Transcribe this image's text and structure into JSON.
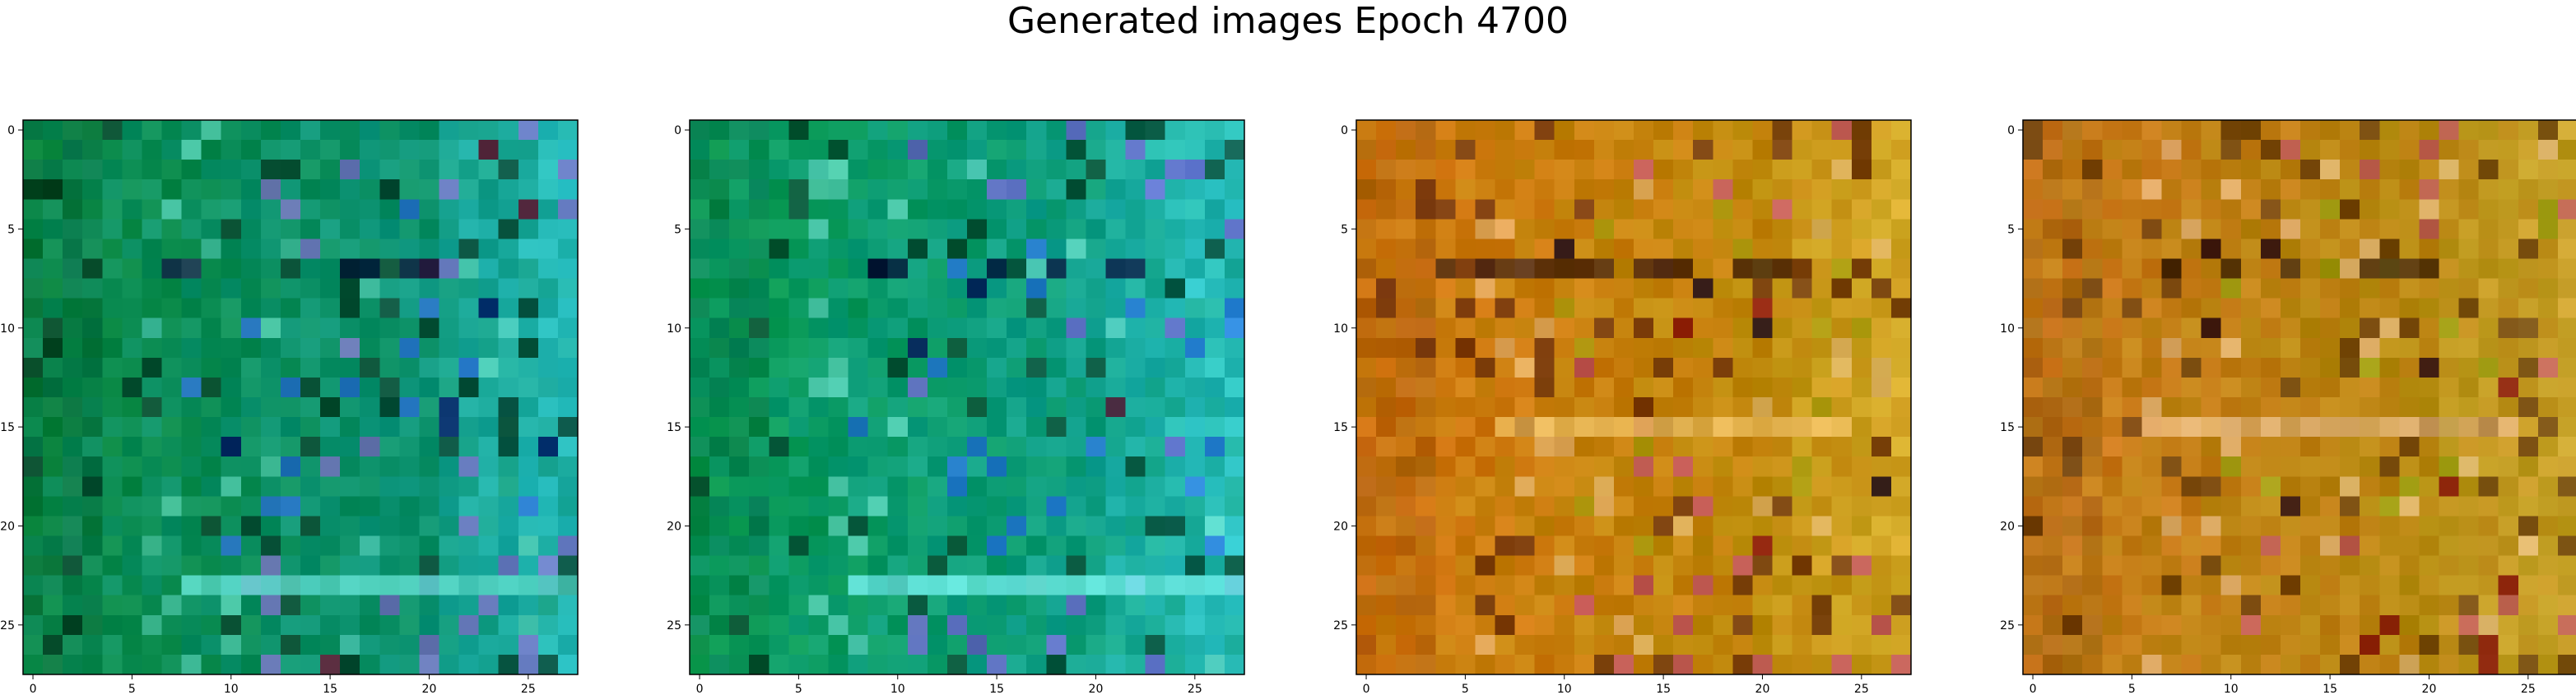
{
  "figure": {
    "title": "Generated images Epoch 4700"
  },
  "chart_data": [
    {
      "type": "heatmap",
      "grid_size": 28,
      "xticks": [
        "0",
        "5",
        "10",
        "15",
        "20",
        "25"
      ],
      "yticks": [
        "0",
        "5",
        "10",
        "15",
        "20",
        "25"
      ],
      "palette": {
        "base": "#0a8a4a",
        "dark": "#04331e",
        "teal": "#109a8a",
        "cyan": "#38d8e8",
        "deep": "#06206a",
        "blue": "#2a6ad8",
        "violet": "#8a6ad0",
        "maroon": "#6a1030",
        "pale": "#6ae0c8"
      },
      "stripe": {
        "row": 23,
        "from": 8,
        "to": 27,
        "color": "#58d8c8"
      },
      "dark_band": {
        "row": 7,
        "from": 6,
        "to": 20,
        "color": "#040a30"
      }
    },
    {
      "type": "heatmap",
      "grid_size": 28,
      "xticks": [
        "0",
        "5",
        "10",
        "15",
        "20",
        "25"
      ],
      "yticks": [
        "0",
        "5",
        "10",
        "15",
        "20",
        "25"
      ],
      "palette": {
        "base": "#0a9a5a",
        "dark": "#043a22",
        "teal": "#12a29a",
        "cyan": "#48e4f0",
        "deep": "#061a5a",
        "blue": "#2a72e0",
        "violet": "#7a5ad8",
        "maroon": "#5a1030",
        "pale": "#7ae8d8"
      },
      "stripe": {
        "row": 23,
        "from": 8,
        "to": 27,
        "color": "#68e8e0"
      },
      "dark_band": {
        "row": 7,
        "from": 8,
        "to": 22,
        "color": "#040a3a"
      }
    },
    {
      "type": "heatmap",
      "grid_size": 28,
      "xticks": [
        "0",
        "5",
        "10",
        "15",
        "20",
        "25"
      ],
      "yticks": [
        "0",
        "5",
        "10",
        "15",
        "20",
        "25"
      ],
      "palette": {
        "base": "#d07810",
        "dark": "#5a2008",
        "teal": "#b8900a",
        "cyan": "#e8c040",
        "deep": "#1a0818",
        "blue": "#a8a010",
        "violet": "#c04870",
        "maroon": "#8a1010",
        "pale": "#f0c890"
      },
      "stripe": {
        "row": 15,
        "from": 7,
        "to": 24,
        "color": "#e8b858"
      },
      "dark_band": {
        "row": 7,
        "from": 4,
        "to": 22,
        "color": "#3a1808"
      }
    },
    {
      "type": "heatmap",
      "grid_size": 28,
      "xticks": [
        "0",
        "5",
        "10",
        "15",
        "20",
        "25"
      ],
      "yticks": [
        "0",
        "5",
        "10",
        "15",
        "20",
        "25"
      ],
      "palette": {
        "base": "#c87a18",
        "dark": "#5a3008",
        "teal": "#b0900e",
        "cyan": "#e0b848",
        "deep": "#2a0a10",
        "blue": "#98a010",
        "violet": "#c05068",
        "maroon": "#8a1410",
        "pale": "#f0c8a0"
      },
      "stripe": {
        "row": 15,
        "from": 7,
        "to": 24,
        "color": "#e0b070"
      },
      "dark_band": {
        "row": 7,
        "from": 6,
        "to": 20,
        "color": "#3a2008"
      }
    }
  ]
}
